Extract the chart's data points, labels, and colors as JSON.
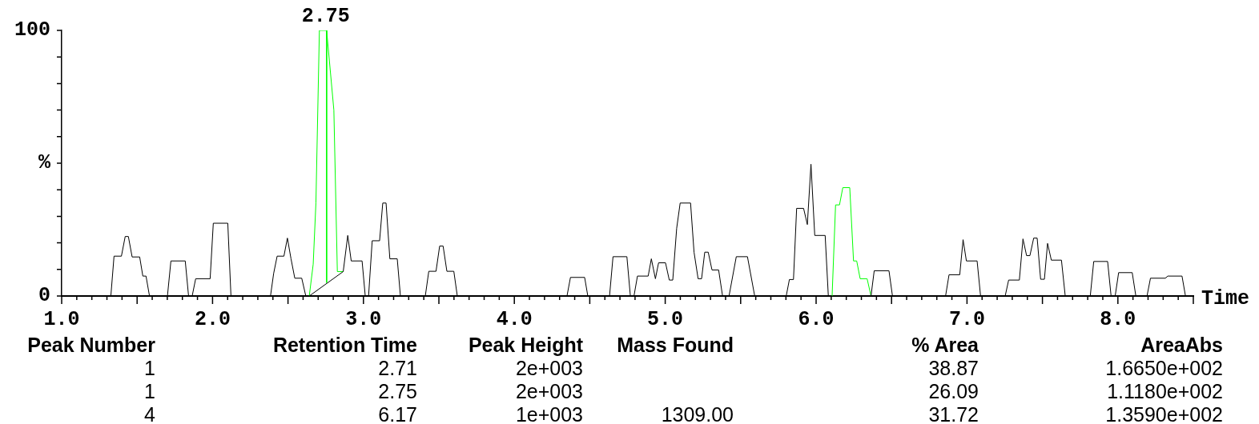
{
  "chart_data": {
    "type": "line",
    "xlabel": "Time",
    "ylabel": "%",
    "xlim": [
      1.0,
      8.5
    ],
    "ylim": [
      0,
      100
    ],
    "xticks": [
      {
        "value": 1.0,
        "label": "1.0"
      },
      {
        "value": 1.1,
        "label": null
      },
      {
        "value": 1.2,
        "label": null
      },
      {
        "value": 1.3,
        "label": null
      },
      {
        "value": 1.4,
        "label": null
      },
      {
        "value": 1.5,
        "label": null
      },
      {
        "value": 1.6,
        "label": null
      },
      {
        "value": 1.7,
        "label": null
      },
      {
        "value": 1.8,
        "label": null
      },
      {
        "value": 1.9,
        "label": null
      },
      {
        "value": 2.0,
        "label": "2.0"
      },
      {
        "value": 2.1,
        "label": null
      },
      {
        "value": 2.2,
        "label": null
      },
      {
        "value": 2.3,
        "label": null
      },
      {
        "value": 2.4,
        "label": null
      },
      {
        "value": 2.5,
        "label": null
      },
      {
        "value": 2.6,
        "label": null
      },
      {
        "value": 2.7,
        "label": null
      },
      {
        "value": 2.8,
        "label": null
      },
      {
        "value": 2.9,
        "label": null
      },
      {
        "value": 3.0,
        "label": "3.0"
      },
      {
        "value": 3.1,
        "label": null
      },
      {
        "value": 3.2,
        "label": null
      },
      {
        "value": 3.3,
        "label": null
      },
      {
        "value": 3.4,
        "label": null
      },
      {
        "value": 3.5,
        "label": null
      },
      {
        "value": 3.6,
        "label": null
      },
      {
        "value": 3.7,
        "label": null
      },
      {
        "value": 3.8,
        "label": null
      },
      {
        "value": 3.9,
        "label": null
      },
      {
        "value": 4.0,
        "label": "4.0"
      },
      {
        "value": 4.1,
        "label": null
      },
      {
        "value": 4.2,
        "label": null
      },
      {
        "value": 4.3,
        "label": null
      },
      {
        "value": 4.4,
        "label": null
      },
      {
        "value": 4.5,
        "label": null
      },
      {
        "value": 4.6,
        "label": null
      },
      {
        "value": 4.7,
        "label": null
      },
      {
        "value": 4.8,
        "label": null
      },
      {
        "value": 4.9,
        "label": null
      },
      {
        "value": 5.0,
        "label": "5.0"
      },
      {
        "value": 5.1,
        "label": null
      },
      {
        "value": 5.2,
        "label": null
      },
      {
        "value": 5.3,
        "label": null
      },
      {
        "value": 5.4,
        "label": null
      },
      {
        "value": 5.5,
        "label": null
      },
      {
        "value": 5.6,
        "label": null
      },
      {
        "value": 5.7,
        "label": null
      },
      {
        "value": 5.8,
        "label": null
      },
      {
        "value": 5.9,
        "label": null
      },
      {
        "value": 6.0,
        "label": "6.0"
      },
      {
        "value": 6.1,
        "label": null
      },
      {
        "value": 6.2,
        "label": null
      },
      {
        "value": 6.3,
        "label": null
      },
      {
        "value": 6.4,
        "label": null
      },
      {
        "value": 6.5,
        "label": null
      },
      {
        "value": 6.6,
        "label": null
      },
      {
        "value": 6.7,
        "label": null
      },
      {
        "value": 6.8,
        "label": null
      },
      {
        "value": 6.9,
        "label": null
      },
      {
        "value": 7.0,
        "label": "7.0"
      },
      {
        "value": 7.1,
        "label": null
      },
      {
        "value": 7.2,
        "label": null
      },
      {
        "value": 7.3,
        "label": null
      },
      {
        "value": 7.4,
        "label": null
      },
      {
        "value": 7.5,
        "label": null
      },
      {
        "value": 7.6,
        "label": null
      },
      {
        "value": 7.7,
        "label": null
      },
      {
        "value": 7.8,
        "label": null
      },
      {
        "value": 7.9,
        "label": null
      },
      {
        "value": 8.0,
        "label": "8.0"
      },
      {
        "value": 8.1,
        "label": null
      },
      {
        "value": 8.2,
        "label": null
      },
      {
        "value": 8.3,
        "label": null
      },
      {
        "value": 8.4,
        "label": null
      },
      {
        "value": 8.5,
        "label": null
      }
    ],
    "yticks": [
      0,
      {
        "value": 10,
        "label": null
      },
      {
        "value": 20,
        "label": null
      },
      {
        "value": 30,
        "label": null
      },
      {
        "value": 40,
        "label": null
      },
      {
        "value": 50,
        "label": null
      },
      {
        "value": 60,
        "label": null
      },
      {
        "value": 70,
        "label": null
      },
      {
        "value": 80,
        "label": null
      },
      {
        "value": 90,
        "label": null
      },
      100
    ],
    "series": [
      {
        "color": "#000000",
        "x": [
          1.0,
          1.326,
          1.347,
          1.396,
          1.421,
          1.442,
          1.467,
          1.517,
          1.538,
          1.559,
          1.582,
          1.701,
          1.724,
          1.819,
          1.841,
          1.865,
          1.888,
          1.984,
          2.005,
          2.101,
          2.122,
          2.384,
          2.405,
          2.428,
          2.473,
          2.496,
          2.52,
          2.545,
          2.591,
          2.618,
          2.641,
          2.866,
          2.896,
          2.919,
          2.991,
          3.012,
          3.034,
          3.058,
          3.107,
          3.128,
          3.15,
          3.175,
          3.224,
          3.245,
          3.41,
          3.433,
          3.481,
          3.505,
          3.528,
          3.553,
          3.599,
          3.622,
          4.349,
          4.372,
          4.466,
          4.487,
          4.631,
          4.654,
          4.746,
          4.769,
          4.793,
          4.816,
          4.887,
          4.908,
          4.935,
          4.956,
          5.002,
          5.027,
          5.05,
          5.076,
          5.099,
          5.168,
          5.191,
          5.218,
          5.241,
          5.262,
          5.285,
          5.31,
          5.354,
          5.38,
          5.423,
          5.471,
          5.545,
          5.593,
          5.802,
          5.823,
          5.85,
          5.871,
          5.917,
          5.942,
          5.966,
          5.991,
          6.06,
          6.081,
          6.106,
          6.2,
          6.364,
          6.385,
          6.483,
          6.506,
          6.858,
          6.881,
          6.952,
          6.974,
          6.996,
          7.067,
          7.09,
          7.253,
          7.276,
          7.347,
          7.371,
          7.395,
          7.417,
          7.442,
          7.465,
          7.488,
          7.513,
          7.534,
          7.559,
          7.626,
          7.651,
          7.817,
          7.84,
          7.932,
          7.955,
          7.982,
          8.005,
          8.095,
          8.119,
          8.193,
          8.216,
          8.314,
          8.331,
          8.425,
          8.448,
          8.47
        ],
        "values": [
          0,
          0,
          15,
          15,
          22.4,
          22.4,
          14.7,
          14.7,
          7.5,
          7.5,
          0,
          0,
          13.2,
          13.2,
          0,
          0,
          6.5,
          6.5,
          27.4,
          27.4,
          0,
          0,
          8.5,
          15,
          15,
          21.8,
          14,
          6.7,
          6.7,
          0,
          0,
          9.2,
          22.8,
          13.2,
          13.2,
          0,
          0,
          20.8,
          20.8,
          35,
          35,
          14,
          14,
          0,
          0,
          9.3,
          9.3,
          18.8,
          18.8,
          9.3,
          9.3,
          0,
          0,
          7,
          7,
          0,
          0,
          14.8,
          14.8,
          0,
          0,
          7.5,
          7.5,
          14,
          6.5,
          12.5,
          12.5,
          6,
          6,
          25.5,
          35,
          35,
          16.5,
          6.5,
          6.5,
          16.5,
          16.5,
          9.8,
          9.8,
          0,
          0,
          14.8,
          14.8,
          0,
          0,
          6.2,
          6.2,
          33,
          33,
          26.9,
          49.6,
          22.8,
          22.8,
          0,
          0,
          null,
          0,
          9.5,
          9.5,
          0,
          0,
          8,
          8,
          21.2,
          13.2,
          13.2,
          0,
          0,
          6,
          6,
          21.5,
          15.2,
          15.2,
          21.8,
          21.8,
          6.3,
          6.3,
          19.8,
          13.5,
          13.5,
          0,
          0,
          13,
          13,
          0,
          0,
          8.8,
          8.8,
          0,
          0,
          6.7,
          6.7,
          7.5,
          7.5,
          0,
          0
        ]
      },
      {
        "color": "#00ff00",
        "x": [
          2.641,
          2.667,
          2.685,
          2.708,
          2.756,
          2.804,
          2.827,
          2.866,
          4.5,
          6.106,
          6.129,
          6.155,
          6.177,
          6.223,
          6.248,
          6.269,
          6.292,
          6.338,
          6.364
        ],
        "values": [
          0,
          12,
          35,
          100,
          100,
          70,
          9.2,
          9.2,
          null,
          0,
          34.3,
          34.3,
          40.8,
          40.8,
          13.2,
          13.2,
          6.5,
          6.5,
          0
        ]
      },
      {
        "color": "#00ff00",
        "x": [
          2.756,
          2.756
        ],
        "values": [
          100,
          5
        ]
      }
    ],
    "annotations": [
      {
        "text": "2.75",
        "x": 2.75,
        "y": 100
      },
      "Peak Number\tRetention Time\tPeak Height\tMass Found\t% Area\tAreaAbs",
      "1\t2.71\t2e+003\t\t38.87\t1.6650e+002",
      "1\t2.75\t2e+003\t\t26.09\t1.1180e+002",
      "4\t6.17\t1e+003\t1309.00\t31.72\t1.3590e+002"
    ]
  }
}
